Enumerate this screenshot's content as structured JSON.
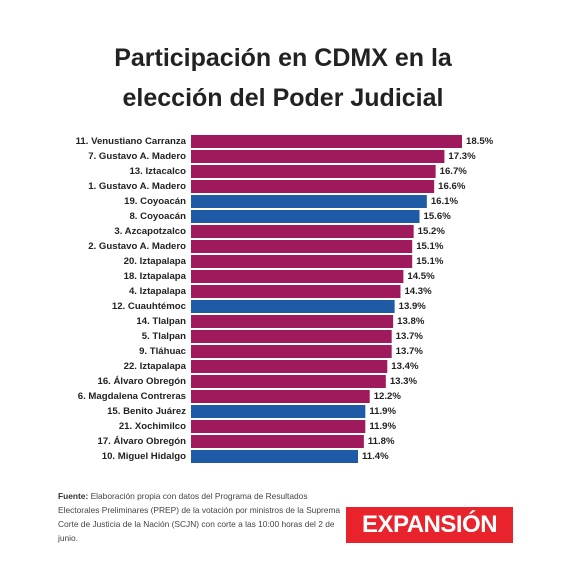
{
  "title_line1": "Participación en CDMX en la",
  "title_line2": "elección del Poder Judicial",
  "source_label": "Fuente:",
  "source_text": "Elaboración propia con datos del Programa de Resultados Electorales Preliminares (PREP) de la votación por ministros de la Suprema Corte de Justicia de la Nación (SCJN) con corte a las 10:00 horas del 2 de junio.",
  "logo_text": "EXPANSIÓN",
  "colors": {
    "magenta": "#9e1a5c",
    "blue": "#1f5aa6",
    "logo_red": "#e8232b"
  },
  "chart_data": {
    "type": "bar",
    "orientation": "horizontal",
    "categories": [
      "11. Venustiano Carranza",
      "7. Gustavo A. Madero",
      "13. Iztacalco",
      "1. Gustavo A. Madero",
      "19. Coyoacán",
      "8. Coyoacán",
      "3. Azcapotzalco",
      "2. Gustavo A. Madero",
      "20. Iztapalapa",
      "18. Iztapalapa",
      "4. Iztapalapa",
      "12. Cuauhtémoc",
      "14. Tlalpan",
      "5. Tlalpan",
      "9. Tláhuac",
      "22. Iztapalapa",
      "16. Álvaro Obregón",
      "6. Magdalena Contreras",
      "15. Benito Juárez",
      "21. Xochimilco",
      "17. Álvaro Obregón",
      "10. Miguel Hidalgo"
    ],
    "values": [
      18.5,
      17.3,
      16.7,
      16.6,
      16.1,
      15.6,
      15.2,
      15.1,
      15.1,
      14.5,
      14.3,
      13.9,
      13.8,
      13.7,
      13.7,
      13.4,
      13.3,
      12.2,
      11.9,
      11.9,
      11.8,
      11.4
    ],
    "value_labels": [
      "18.5%",
      "17.3%",
      "16.7%",
      "16.6%",
      "16.1%",
      "15.6%",
      "15.2%",
      "15.1%",
      "15.1%",
      "14.5%",
      "14.3%",
      "13.9%",
      "13.8%",
      "13.7%",
      "13.7%",
      "13.4%",
      "13.3%",
      "12.2%",
      "11.9%",
      "11.9%",
      "11.8%",
      "11.4%"
    ],
    "bar_colors": [
      "magenta",
      "magenta",
      "magenta",
      "magenta",
      "blue",
      "blue",
      "magenta",
      "magenta",
      "magenta",
      "magenta",
      "magenta",
      "blue",
      "magenta",
      "magenta",
      "magenta",
      "magenta",
      "magenta",
      "magenta",
      "blue",
      "magenta",
      "magenta",
      "blue"
    ],
    "title": "Participación en CDMX en la elección del Poder Judicial",
    "xlabel": "",
    "ylabel": "",
    "grid": false,
    "legend": "none"
  }
}
